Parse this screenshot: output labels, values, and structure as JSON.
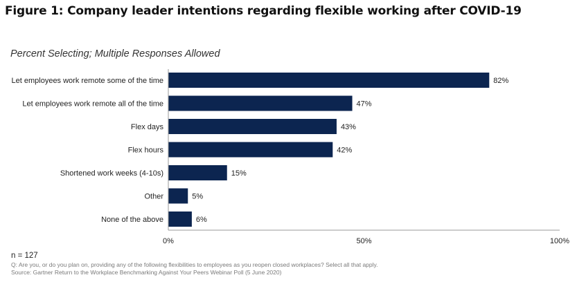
{
  "figure_title": "Figure 1: Company leader intentions regarding flexible working after COVID-19",
  "subtitle": "Percent Selecting; Multiple Responses Allowed",
  "footer": {
    "n": "n = 127",
    "question": "Q: Are you, or do you plan on, providing any of the following flexibilities to employees as you reopen closed workplaces? Select all that apply.",
    "source": "Source: Gartner Return to the Workplace Benchmarking Against Your Peers Webinar Poll (5 June 2020)"
  },
  "chart_data": {
    "type": "bar",
    "orientation": "horizontal",
    "categories": [
      "Let employees work remote some of the time",
      "Let employees work remote all of the time",
      "Flex days",
      "Flex hours",
      "Shortened work weeks (4-10s)",
      "Other",
      "None of the above"
    ],
    "values": [
      82,
      47,
      43,
      42,
      15,
      5,
      6
    ],
    "data_labels": [
      "82%",
      "47%",
      "43%",
      "42%",
      "15%",
      "5%",
      "6%"
    ],
    "xlim": [
      0,
      100
    ],
    "x_ticks": [
      0,
      50,
      100
    ],
    "x_tick_labels": [
      "0%",
      "50%",
      "100%"
    ],
    "bar_color": "#0c2550",
    "grid": false
  }
}
